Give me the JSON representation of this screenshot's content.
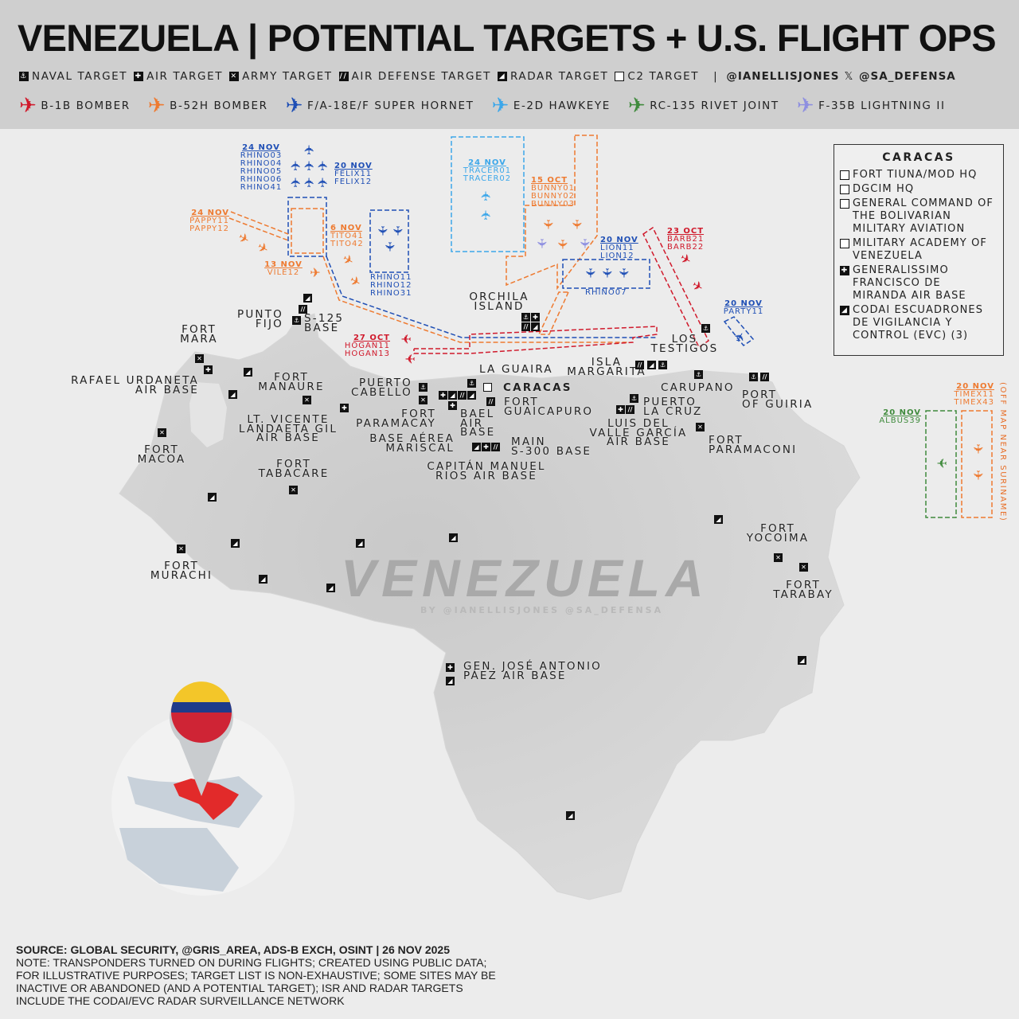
{
  "title": "VENEZUELA | POTENTIAL TARGETS + U.S. FLIGHT OPS",
  "target_legend": [
    {
      "type": "naval",
      "label": "NAVAL TARGET"
    },
    {
      "type": "air",
      "label": "AIR TARGET"
    },
    {
      "type": "army",
      "label": "ARMY TARGET"
    },
    {
      "type": "airdef",
      "label": "AIR DEFENSE TARGET"
    },
    {
      "type": "radar",
      "label": "RADAR TARGET"
    },
    {
      "type": "c2",
      "label": "C2 TARGET"
    }
  ],
  "handles": {
    "first": "@IANELLISJONES",
    "x": "𝕏",
    "second": "@SA_DEFENSA",
    "sep": "|"
  },
  "aircraft_legend": [
    {
      "label": "B-1B BOMBER",
      "color": "#d0192b"
    },
    {
      "label": "B-52H BOMBER",
      "color": "#ee7a30"
    },
    {
      "label": "F/A-18E/F SUPER HORNET",
      "color": "#1f4fb5"
    },
    {
      "label": "E-2D HAWKEYE",
      "color": "#3ca7ea"
    },
    {
      "label": "RC-135 RIVET JOINT",
      "color": "#3f8a3c"
    },
    {
      "label": "F-35B LIGHTNING II",
      "color": "#8e8fe0"
    }
  ],
  "icon_glyphs": {
    "naval": "⚓",
    "air": "✚",
    "army": "✕",
    "airdef": "//",
    "radar": "◢",
    "c2": ""
  },
  "caracas_box": {
    "title": "CARACAS",
    "items": [
      {
        "type": "c2",
        "label": "FORT TIUNA/MOD HQ"
      },
      {
        "type": "c2",
        "label": "DGCIM HQ"
      },
      {
        "type": "c2",
        "label": "GENERAL COMMAND OF THE BOLIVARIAN MILITARY AVIATION"
      },
      {
        "type": "c2",
        "label": "MILITARY ACADEMY OF VENEZUELA"
      },
      {
        "type": "air",
        "label": "GENERALISSIMO FRANCISCO DE MIRANDA AIR BASE"
      },
      {
        "type": "radar",
        "label": "CODAI ESCUADRONES DE VIGILANCIA Y CONTROL (EVC) (3)"
      }
    ]
  },
  "places": [
    "FORT\nMARA",
    "RAFAEL URDANETA\nAIR BASE",
    "FORT\nMANAURE",
    "PUNTO\nFIJO",
    "S-125\nBASE",
    "FORT\nMACOA",
    "LT. VICENTE\nLANDAETA GIL\nAIR BASE",
    "FORT\nTABACARE",
    "PUERTO\nCABELLO",
    "FORT\nPARAMACAY",
    "BASE AÉREA\nMARISCAL",
    "LA GUAIRA",
    "CARACAS",
    "FORT\nGUAICAPURO",
    "BAEL\nAIR\nBASE",
    "MAIN\nS-300 BASE",
    "CAPITÁN MANUEL\nRIOS AIR BASE",
    "ORCHILA\nISLAND",
    "ISLA\nMARGARITA",
    "LOS\nTESTIGOS",
    "CARUPANO",
    "PUERTO\nLA CRUZ",
    "LUIS DEL\nVALLE GARCÍA\nAIR BASE",
    "PORT\nOF GUIRIA",
    "FORT\nPARAMACONI",
    "FORT\nYOCOIMA",
    "FORT\nTARABAY",
    "FORT\nMURACHI",
    "GEN. JOSÉ ANTONIO\nPÁEZ AIR BASE"
  ],
  "map_targets": [
    "army",
    "air",
    "radar",
    "radar",
    "army",
    "radar",
    "airdef",
    "naval",
    "army",
    "air",
    "army",
    "radar",
    "radar",
    "army",
    "radar",
    "radar",
    "radar",
    "radar",
    "naval",
    "army",
    "air",
    "radar",
    "airdef",
    "radar",
    "naval",
    "air",
    "c2",
    "airdef",
    "radar",
    "air",
    "airdef",
    "naval",
    "air",
    "airdef",
    "radar",
    "airdef",
    "radar",
    "naval",
    "naval",
    "naval",
    "naval",
    "air",
    "airdef",
    "naval",
    "airdef",
    "army",
    "radar",
    "army",
    "army",
    "radar",
    "air",
    "radar",
    "radar"
  ],
  "flight_groups": [
    {
      "date": "24 NOV",
      "callsigns": "RHINO03\nRHINO04\nRHINO05\nRHINO06\nRHINO41",
      "color": "#1f4fb5"
    },
    {
      "date": "20 NOV",
      "callsigns": "FELIX11\nFELIX12",
      "color": "#1f4fb5"
    },
    {
      "date": "24 NOV",
      "callsigns": "PAPPY11\nPAPPY12",
      "color": "#ee7a30"
    },
    {
      "date": "6 NOV",
      "callsigns": "TITO41\nTITO42",
      "color": "#ee7a30"
    },
    {
      "date": "13 NOV",
      "callsigns": "VILE12",
      "color": "#ee7a30"
    },
    {
      "date": "",
      "callsigns": "RHINO11\nRHINO12\nRHINO31",
      "color": "#1f4fb5"
    },
    {
      "date": "24 NOV",
      "callsigns": "TRACER01\nTRACER02",
      "color": "#3ca7ea"
    },
    {
      "date": "15 OCT",
      "callsigns": "BUNNY01\nBUNNY02\nBUNNY03",
      "color": "#ee7a30"
    },
    {
      "date": "20 NOV",
      "callsigns": "LION11\nLION12",
      "color": "#1f4fb5"
    },
    {
      "date": "",
      "callsigns": "RHINO07",
      "color": "#1f4fb5"
    },
    {
      "date": "23 OCT",
      "callsigns": "BARB21\nBARB22",
      "color": "#d0192b"
    },
    {
      "date": "20 NOV",
      "callsigns": "PARTY11",
      "color": "#1f4fb5"
    },
    {
      "date": "27 OCT",
      "callsigns": "HOGAN11\nHOGAN13",
      "color": "#d0192b"
    },
    {
      "date": "20 NOV",
      "callsigns": "ALBUS39",
      "color": "#3f8a3c"
    },
    {
      "date": "20 NOV",
      "callsigns": "TIMEX11\nTIMEX43",
      "color": "#ee7a30"
    }
  ],
  "off_map_note": "(OFF MAP NEAR SURINAME)",
  "watermark": {
    "main": "VENEZUELA",
    "sub": "BY @IANELLISJONES @SA_DEFENSA"
  },
  "source": {
    "line": "SOURCE: GLOBAL SECURITY, @GRIS_AREA, ADS-B EXCH, OSINT | 26 NOV 2025",
    "note": "NOTE: TRANSPONDERS TURNED ON DURING FLIGHTS; CREATED USING PUBLIC DATA; FOR ILLUSTRATIVE PURPOSES; TARGET LIST IS NON-EXHAUSTIVE; SOME SITES MAY BE INACTIVE OR ABANDONED (AND A POTENTIAL TARGET); ISR AND RADAR TARGETS INCLUDE THE CODAI/EVC RADAR SURVEILLANCE NETWORK"
  }
}
